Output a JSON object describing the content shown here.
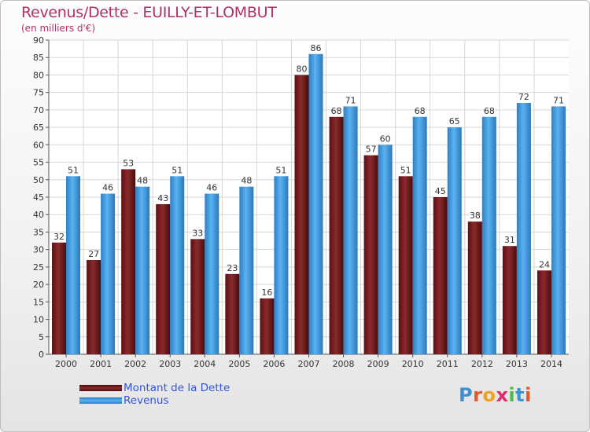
{
  "chart_data": {
    "type": "bar",
    "title": "Revenus/Dette - EUILLY-ET-LOMBUT",
    "subtitle": "(en milliers d'€)",
    "categories": [
      "2000",
      "2001",
      "2002",
      "2003",
      "2004",
      "2005",
      "2006",
      "2007",
      "2008",
      "2009",
      "2010",
      "2011",
      "2012",
      "2013",
      "2014"
    ],
    "series": [
      {
        "name": "Montant de la Dette",
        "color": "#7a1f22",
        "values": [
          32,
          27,
          53,
          43,
          33,
          23,
          16,
          80,
          68,
          57,
          51,
          45,
          38,
          31,
          24
        ]
      },
      {
        "name": "Revenus",
        "color": "#3b9ee8",
        "values": [
          51,
          46,
          48,
          51,
          46,
          48,
          51,
          86,
          71,
          60,
          68,
          65,
          68,
          72,
          71
        ]
      }
    ],
    "y_ticks": [
      0,
      5,
      10,
      15,
      20,
      25,
      30,
      35,
      40,
      45,
      50,
      55,
      60,
      65,
      70,
      75,
      80,
      85,
      90
    ],
    "ylim": [
      0,
      90
    ],
    "grid": true,
    "legend_position": "bottom-left"
  },
  "logo": {
    "letters": [
      {
        "char": "P",
        "color": "#3d8fd6"
      },
      {
        "char": "r",
        "color": "#e05a2a"
      },
      {
        "char": "o",
        "color": "#f0a21e"
      },
      {
        "char": "x",
        "color": "#e02a6e"
      },
      {
        "char": "i",
        "color": "#52b848"
      },
      {
        "char": "t",
        "color": "#3d8fd6"
      },
      {
        "char": "i",
        "color": "#e05a2a"
      }
    ]
  }
}
